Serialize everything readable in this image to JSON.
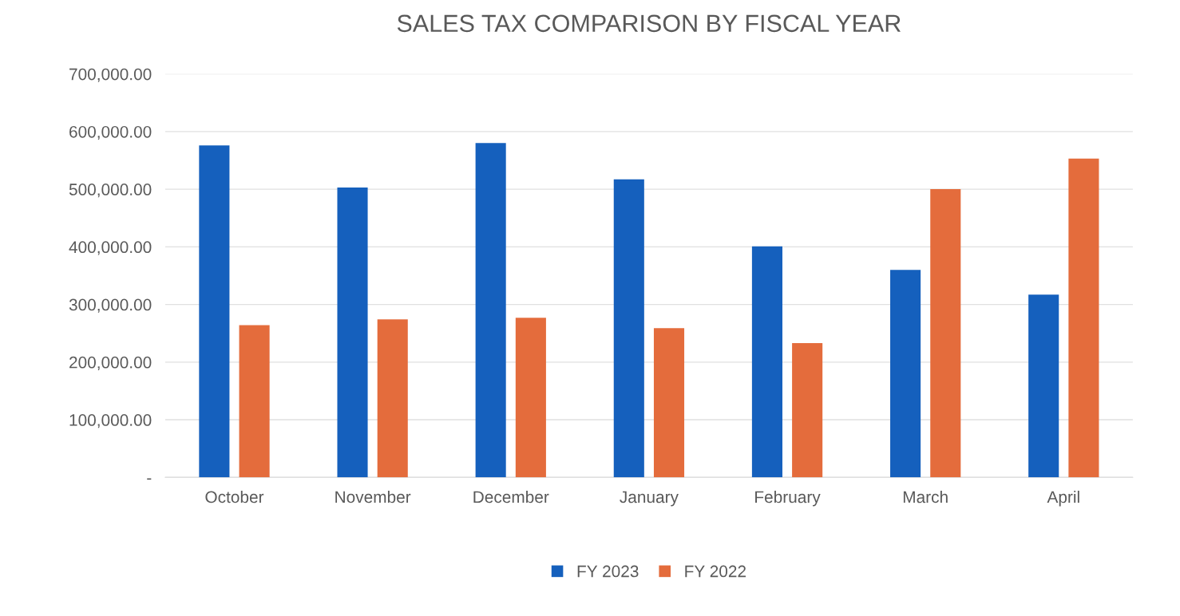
{
  "chart_data": {
    "type": "bar",
    "title": "SALES TAX COMPARISON BY FISCAL YEAR",
    "categories": [
      "October",
      "November",
      "December",
      "January",
      "February",
      "March",
      "April"
    ],
    "series": [
      {
        "name": "FY 2023",
        "color": "#1560bd",
        "values": [
          576000,
          503000,
          580000,
          517000,
          401000,
          360000,
          317000
        ]
      },
      {
        "name": "FY 2022",
        "color": "#e46c3c",
        "values": [
          264000,
          274000,
          277000,
          259000,
          233000,
          500000,
          553000
        ]
      }
    ],
    "ylim": [
      0,
      700000
    ],
    "yticks": [
      {
        "value": 0,
        "label": "-"
      },
      {
        "value": 100000,
        "label": "100,000.00"
      },
      {
        "value": 200000,
        "label": "200,000.00"
      },
      {
        "value": 300000,
        "label": "300,000.00"
      },
      {
        "value": 400000,
        "label": "400,000.00"
      },
      {
        "value": 500000,
        "label": "500,000.00"
      },
      {
        "value": 600000,
        "label": "600,000.00"
      },
      {
        "value": 700000,
        "label": "700,000.00"
      }
    ],
    "grid": "y",
    "legend": "bottom"
  }
}
